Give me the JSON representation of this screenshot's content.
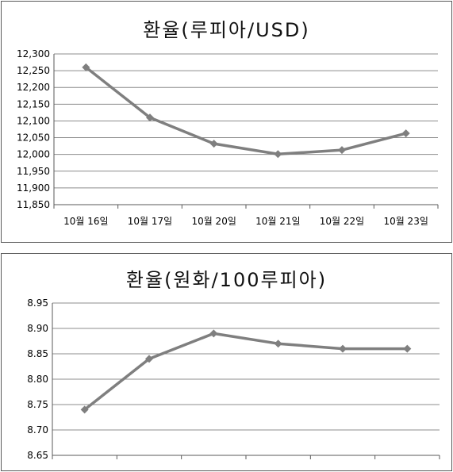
{
  "chart_data": [
    {
      "type": "line",
      "title": "환율(루피아/USD)",
      "categories": [
        "10월 16일",
        "10월 17일",
        "10월 20일",
        "10월 21일",
        "10월 22일",
        "10월 23일"
      ],
      "values": [
        12260,
        12110,
        12032,
        12001,
        12013,
        12063
      ],
      "yticks": [
        "12,300",
        "12,250",
        "12,200",
        "12,150",
        "12,100",
        "12,050",
        "12,000",
        "11,950",
        "11,900",
        "11,850"
      ],
      "ylim": [
        11850,
        12300
      ],
      "grid": true,
      "legend": "none",
      "color": "#7f7f7f"
    },
    {
      "type": "line",
      "title": "환율(원화/100루피아)",
      "categories": [
        "",
        "",
        "",
        "",
        "",
        ""
      ],
      "values": [
        8.74,
        8.84,
        8.89,
        8.87,
        8.86,
        8.86
      ],
      "yticks": [
        "8.95",
        "8.90",
        "8.85",
        "8.80",
        "8.75",
        "8.70",
        "8.65"
      ],
      "ylim": [
        8.65,
        8.95
      ],
      "grid": true,
      "legend": "none",
      "color": "#7f7f7f"
    }
  ]
}
